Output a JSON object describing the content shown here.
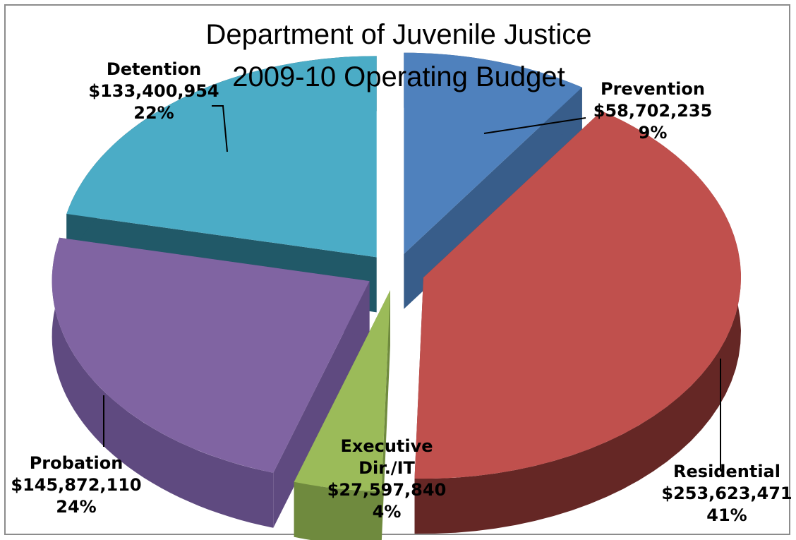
{
  "chart_data": {
    "type": "pie",
    "title_lines": [
      "Department of Juvenile Justice",
      "2009-10 Operating Budget"
    ],
    "exploded": true,
    "three_d": true,
    "categories": [
      "Prevention",
      "Residential",
      "Executive Dir./IT",
      "Probation",
      "Detention"
    ],
    "label_lines": [
      [
        "Prevention"
      ],
      [
        "Residential"
      ],
      [
        "Executive",
        "Dir./IT"
      ],
      [
        "Probation"
      ],
      [
        "Detention"
      ]
    ],
    "values": [
      58702235,
      253623471,
      27597840,
      145872110,
      133400954
    ],
    "value_labels": [
      "$58,702,235",
      "$253,623,471",
      "$27,597,840",
      "$145,872,110",
      "$133,400,954"
    ],
    "percent_labels": [
      "9%",
      "41%",
      "4%",
      "24%",
      "22%"
    ],
    "colors": {
      "top": [
        "#4f81bd",
        "#c0504d",
        "#9bbb59",
        "#8064a2",
        "#4bacc6"
      ],
      "side": [
        "#385d8a",
        "#652725",
        "#6f8a3e",
        "#5f4a80",
        "#215968"
      ]
    }
  }
}
